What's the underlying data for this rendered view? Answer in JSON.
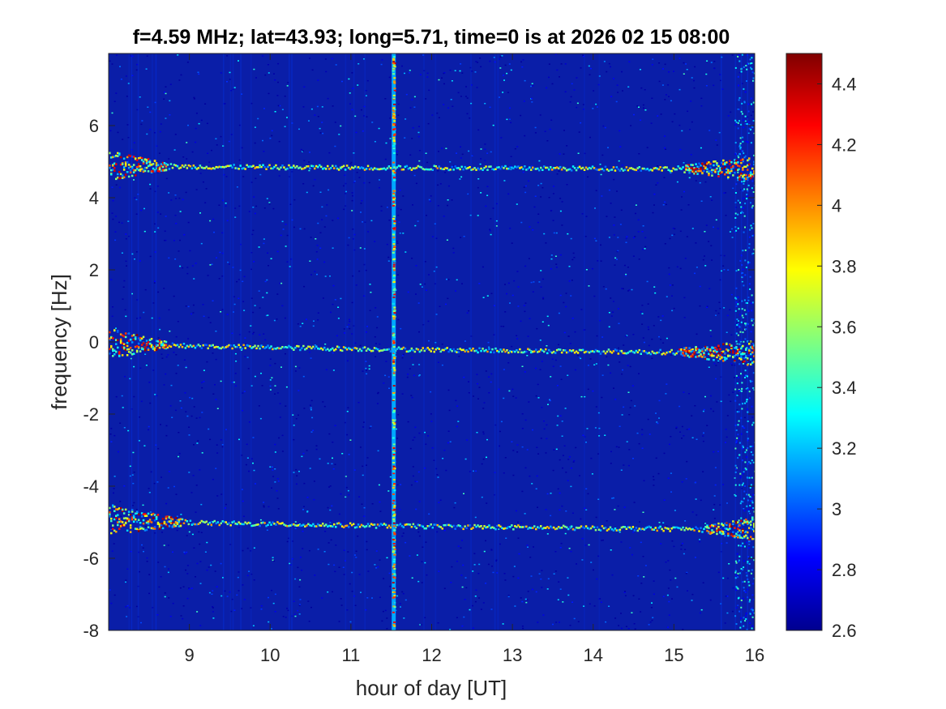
{
  "chart_data": {
    "type": "heatmap",
    "title": "f=4.59 MHz;  lat=43.93; long=5.71, time=0 is at 2026 02 15 08:00",
    "xlabel": "hour of day [UT]",
    "ylabel": "frequency [Hz]",
    "xlim": [
      8.0,
      16.0
    ],
    "ylim": [
      -8,
      8
    ],
    "x_ticks": [
      9,
      10,
      11,
      12,
      13,
      14,
      15,
      16
    ],
    "y_ticks": [
      -8,
      -6,
      -4,
      -2,
      0,
      2,
      4,
      6
    ],
    "colorbar": {
      "range": [
        2.6,
        4.5
      ],
      "ticks": [
        2.6,
        2.8,
        3.0,
        3.2,
        3.4,
        3.6,
        3.8,
        4.0,
        4.2,
        4.4
      ],
      "tick_labels": [
        "2.6",
        "2.8",
        "3",
        "3.2",
        "3.4",
        "3.6",
        "3.8",
        "4",
        "4.2",
        "4.4"
      ],
      "colormap": "jet"
    },
    "background_level": 2.65,
    "features": [
      {
        "kind": "horizontal-trace",
        "freq_start": 4.9,
        "freq_end": 4.8,
        "x_start": 8.0,
        "x_end": 16.0,
        "level": 3.6,
        "broad_ends": [
          8.0,
          8.8,
          15.0,
          16.0
        ]
      },
      {
        "kind": "horizontal-trace",
        "freq_start": 0.0,
        "freq_end": -0.3,
        "x_start": 8.0,
        "x_end": 16.0,
        "level": 3.6,
        "broad_ends": [
          8.0,
          8.8,
          14.9,
          16.0
        ]
      },
      {
        "kind": "horizontal-trace",
        "freq_start": -4.9,
        "freq_end": -5.2,
        "x_start": 8.0,
        "x_end": 16.0,
        "level": 3.6,
        "broad_ends": [
          8.0,
          9.0,
          15.3,
          16.0
        ]
      },
      {
        "kind": "vertical-trace",
        "x": 11.53,
        "freq_range": [
          -8,
          8
        ],
        "level": 3.4
      }
    ],
    "colors": {
      "low": "#00008f",
      "background": "#0a1ea8",
      "high": "#800000"
    }
  }
}
